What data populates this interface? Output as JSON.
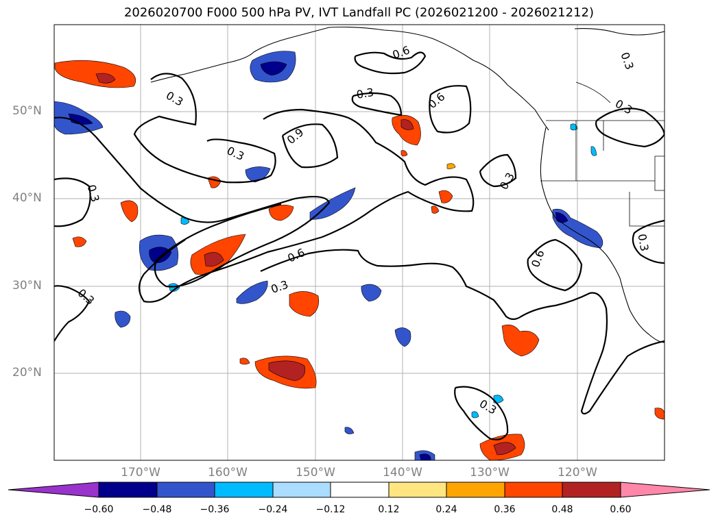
{
  "title": "2026020700 F000 500 hPa PV, IVT Landfall PC (2026021200 - 2026021212)",
  "lat_labels": [
    "50°N",
    "40°N",
    "30°N",
    "20°N"
  ],
  "lon_labels": [
    "170°W",
    "160°W",
    "150°W",
    "140°W",
    "130°W",
    "120°W"
  ],
  "contour_labels": [
    "0.3",
    "0.6",
    "0.9"
  ],
  "colorbar": {
    "ticks": [
      "−0.60",
      "−0.48",
      "−0.36",
      "−0.24",
      "−0.12",
      "0.12",
      "0.24",
      "0.36",
      "0.48",
      "0.60"
    ],
    "colors": [
      "#9933cc",
      "#00008b",
      "#3355cc",
      "#00bbff",
      "#aaddff",
      "#ffffff",
      "#ffe680",
      "#ffa500",
      "#ff4500",
      "#b22222",
      "#ff88aa"
    ]
  }
}
